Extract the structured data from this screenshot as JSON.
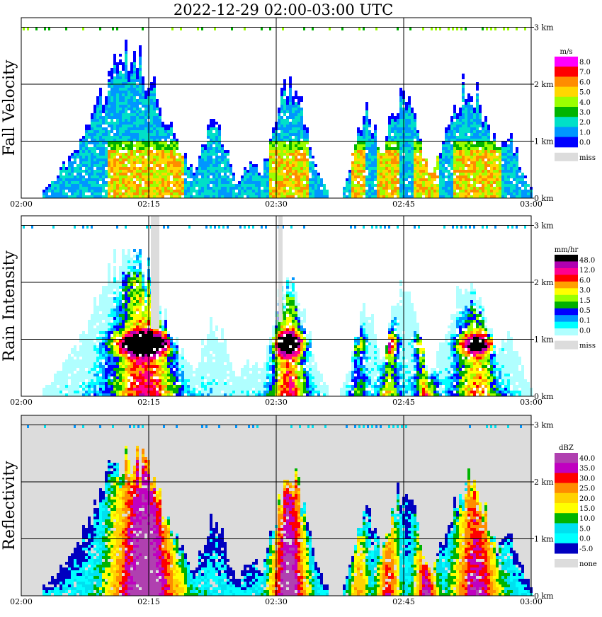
{
  "title": "2022-12-29   02:00-03:00 UTC",
  "time_ticks": [
    "02:00",
    "02:15",
    "02:30",
    "02:45",
    "03:00"
  ],
  "height_ticks": [
    "0 km",
    "1 km",
    "2 km",
    "3 km"
  ],
  "colors": {
    "missing": "#dcdcdc",
    "grid": "#000000",
    "frame": "#000000"
  },
  "chart_data": [
    {
      "type": "heatmap",
      "ylabel": "Fall Velocity",
      "xlabel": "",
      "x_range": [
        "02:00",
        "03:00"
      ],
      "y_range_km": [
        0,
        3.2
      ],
      "grid": true,
      "background": "#ffffff",
      "legend": {
        "placement": "right",
        "unit": "m/s",
        "labels": [
          "8.0",
          "7.0",
          "6.0",
          "5.0",
          "4.0",
          "3.0",
          "2.0",
          "1.0",
          "0.0"
        ],
        "colors": [
          "#ff00ff",
          "#ff0000",
          "#ff8c00",
          "#ffd700",
          "#9aff00",
          "#00b400",
          "#00e0c8",
          "#0096ff",
          "#0000ff"
        ],
        "missing_label": "miss"
      },
      "dominant_values": [
        {
          "label": "low-level core, heights 0.4-1.0 km",
          "range": "4.0-7.0 m/s"
        },
        {
          "label": "upper levels, heights 1.0-2.5 km",
          "range": "1.0-2.0 m/s"
        }
      ]
    },
    {
      "type": "heatmap",
      "ylabel": "Rain Intensity",
      "xlabel": "",
      "x_range": [
        "02:00",
        "03:00"
      ],
      "y_range_km": [
        0,
        3.2
      ],
      "grid": true,
      "background": "#ffffff",
      "legend": {
        "placement": "right",
        "unit": "mm/hr",
        "labels": [
          "48.0",
          "12.0",
          "6.0",
          "3.0",
          "1.5",
          "0.5",
          "0.1",
          "0.0"
        ],
        "colors": [
          "#000000",
          "#b000b0",
          "#ff0090",
          "#ff0000",
          "#ffa000",
          "#ffff00",
          "#9aff00",
          "#00b000",
          "#0000ff",
          "#0096ff",
          "#00ffff",
          "#b0ffff"
        ],
        "missing_label": "miss"
      }
    },
    {
      "type": "heatmap",
      "ylabel": "Reflectivity",
      "xlabel": "",
      "x_range": [
        "02:00",
        "03:00"
      ],
      "y_range_km": [
        0,
        3.2
      ],
      "grid": true,
      "background": "#dcdcdc",
      "legend": {
        "placement": "right",
        "unit": "dBZ",
        "labels": [
          "40.0",
          "35.0",
          "30.0",
          "25.0",
          "20.0",
          "15.0",
          "10.0",
          "5.0",
          "0.0",
          "-5.0"
        ],
        "colors": [
          "#b040b0",
          "#c000c0",
          "#ff0000",
          "#ff8c00",
          "#ffd200",
          "#ffff00",
          "#00b400",
          "#00e0f0",
          "#00ffff",
          "#0000c0"
        ],
        "missing_label": "none"
      }
    }
  ]
}
